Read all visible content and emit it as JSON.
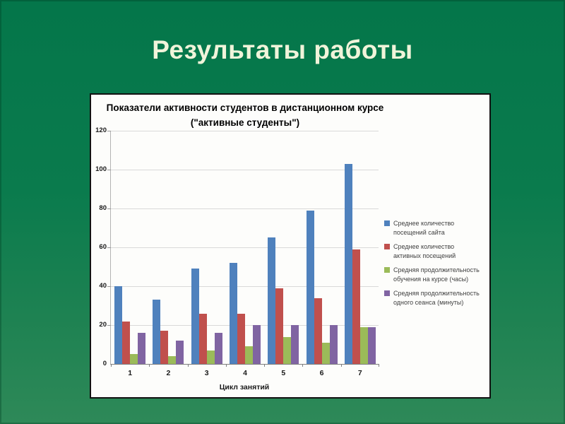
{
  "slide": {
    "title": "Результаты работы",
    "background_top_color": "#04764a",
    "background_bottom_color": "#2e8958",
    "title_color": "#f0f4da"
  },
  "chart_data": {
    "type": "bar",
    "title": "Показатели активности студентов в дистанционном курсе\n(\"активные студенты\")",
    "categories": [
      "1",
      "2",
      "3",
      "4",
      "5",
      "6",
      "7"
    ],
    "series": [
      {
        "name": "Среднее количество\nпосещений сайта",
        "color": "#4f81bd",
        "values": [
          40,
          33,
          49,
          52,
          65,
          79,
          103
        ]
      },
      {
        "name": "Среднее количество\nактивных посещений",
        "color": "#c0504d",
        "values": [
          22,
          17,
          26,
          26,
          39,
          34,
          59
        ]
      },
      {
        "name": "Средняя продолжительность\nобучения на курсе (часы)",
        "color": "#9bbb59",
        "values": [
          5,
          4,
          7,
          9,
          14,
          11,
          19
        ]
      },
      {
        "name": "Средняя продолжительность\nодного сеанса (минуты)",
        "color": "#8064a2",
        "values": [
          16,
          12,
          16,
          20,
          20,
          20,
          19
        ]
      }
    ],
    "xlabel": "Цикл занятий",
    "ylabel": "",
    "ylim": [
      0,
      120
    ],
    "ytick_step": 20,
    "yticks": [
      0,
      20,
      40,
      60,
      80,
      100,
      120
    ],
    "grid": true,
    "legend_position": "right",
    "gridline_color": "#d9d9d9",
    "panel_background": "#fdfdfb"
  }
}
